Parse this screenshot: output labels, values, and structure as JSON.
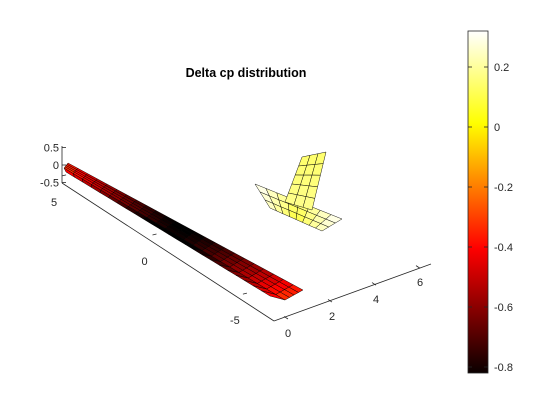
{
  "chart_data": {
    "type": "surface3d",
    "title": "Delta cp distribution",
    "xlabel": "",
    "ylabel": "",
    "zlabel": "",
    "axes": {
      "x": {
        "ticks": [
          0,
          2,
          4,
          6
        ],
        "range": [
          0,
          6.5
        ]
      },
      "y": {
        "ticks": [
          -5,
          0,
          5
        ],
        "range": [
          -6,
          6
        ]
      },
      "z": {
        "ticks": [
          -0.5,
          0,
          0.5
        ],
        "range": [
          -0.6,
          0.6
        ]
      }
    },
    "colorbar": {
      "colormap": "hot",
      "range": [
        -0.82,
        0.32
      ],
      "ticks": [
        -0.8,
        -0.6,
        -0.4,
        -0.2,
        0,
        0.2
      ],
      "tick_labels": [
        "-0.8",
        "-0.6",
        "-0.4",
        "-0.2",
        "0",
        "0.2"
      ]
    },
    "surfaces": [
      {
        "name": "wing",
        "chord_panels": 4,
        "span_panels": 24,
        "delta_cp_range": [
          -0.82,
          -0.3
        ],
        "value_at_root": -0.82,
        "value_at_tips": -0.32
      },
      {
        "name": "horizontal-tail",
        "chord_panels": 3,
        "span_panels": 8,
        "delta_cp_range": [
          0.0,
          0.32
        ]
      },
      {
        "name": "vertical-tail",
        "chord_panels": 3,
        "span_panels": 5,
        "delta_cp_range": [
          0.1,
          0.18
        ]
      }
    ]
  }
}
